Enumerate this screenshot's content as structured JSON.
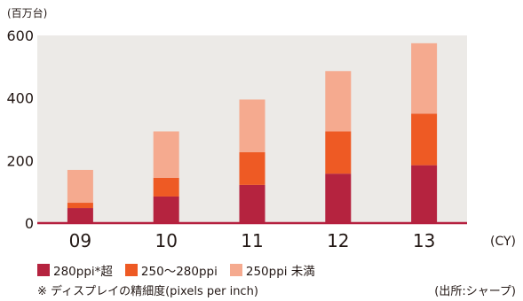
{
  "unit_label": "(百万台)",
  "legend_labels": [
    "280ppi*超",
    "250〜280ppi",
    "250ppi 未満"
  ],
  "footnote": "※ ディスプレイの精細度(pixels per inch)",
  "source": "(出所:シャープ)",
  "colors": {
    "plot_bg": "#eceae7",
    "axis_line": "#b51f3e",
    "series": [
      "#b5233f",
      "#ee5a24",
      "#f5aa8f"
    ]
  },
  "chart_data": {
    "type": "bar",
    "stacked": true,
    "title": "",
    "xlabel": "(CY)",
    "ylabel": "(百万台)",
    "categories": [
      "09",
      "10",
      "11",
      "12",
      "13"
    ],
    "series": [
      {
        "name": "280ppi*超",
        "values": [
          48,
          85,
          122,
          158,
          185
        ]
      },
      {
        "name": "250〜280ppi",
        "values": [
          17,
          60,
          105,
          135,
          165
        ]
      },
      {
        "name": "250ppi 未満",
        "values": [
          105,
          148,
          168,
          193,
          225
        ]
      }
    ],
    "ylim": [
      0,
      600
    ],
    "yticks": [
      0,
      200,
      400,
      600
    ],
    "grid": false,
    "legend": "bottom"
  }
}
